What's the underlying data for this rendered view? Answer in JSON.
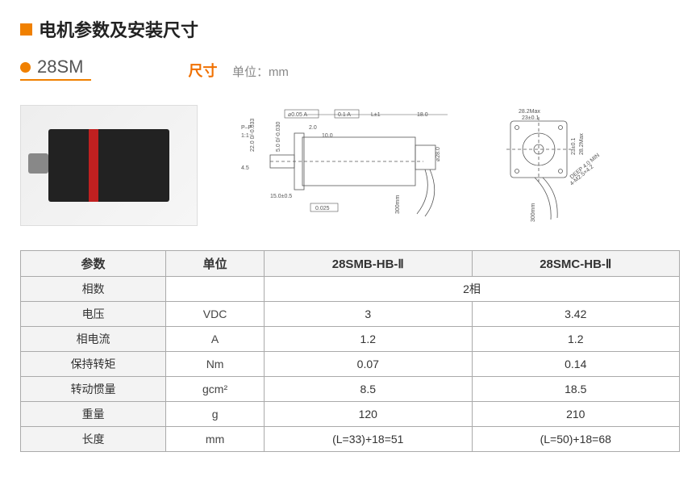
{
  "header": {
    "title": "电机参数及安装尺寸",
    "model": "28SM",
    "dim_label": "尺寸",
    "unit_label": "单位：mm"
  },
  "drawing_labels": {
    "gdtol1": "⌀0.05 A",
    "gdtol2": "0.1 A",
    "gdtol3": "0.025",
    "pp": "P–P",
    "ratio": "1:1",
    "d45": "4.5",
    "d22": "22.0 0/-0.033",
    "d50": "5.0 0/-0.030",
    "d150": "15.0±0.5",
    "d20": "2.0",
    "d100": "10.0",
    "d28": "⌀28.0",
    "L": "L±1",
    "d180": "18.0",
    "d282max": "28.2Max",
    "d23": "23±0.1",
    "d300": "300mm",
    "thread": "4-M2.5×4.2",
    "depth": "DEEP 4.0 MIN"
  },
  "table": {
    "headers": [
      "参数",
      "单位",
      "28SMB-HB-Ⅱ",
      "28SMC-HB-Ⅱ"
    ],
    "rows": [
      {
        "name": "相数",
        "unit": "",
        "span": true,
        "val": "2相"
      },
      {
        "name": "电压",
        "unit": "VDC",
        "span": false,
        "v1": "3",
        "v2": "3.42"
      },
      {
        "name": "相电流",
        "unit": "A",
        "span": false,
        "v1": "1.2",
        "v2": "1.2"
      },
      {
        "name": "保持转矩",
        "unit": "Nm",
        "span": false,
        "v1": "0.07",
        "v2": "0.14"
      },
      {
        "name": "转动惯量",
        "unit": "gcm²",
        "span": false,
        "v1": "8.5",
        "v2": "18.5"
      },
      {
        "name": "重量",
        "unit": "g",
        "span": false,
        "v1": "120",
        "v2": "210"
      },
      {
        "name": "长度",
        "unit": "mm",
        "span": false,
        "v1": "(L=33)+18=51",
        "v2": "(L=50)+18=68"
      }
    ]
  },
  "colors": {
    "accent": "#f08000",
    "border": "#aaaaaa",
    "header_bg": "#f3f3f3"
  }
}
